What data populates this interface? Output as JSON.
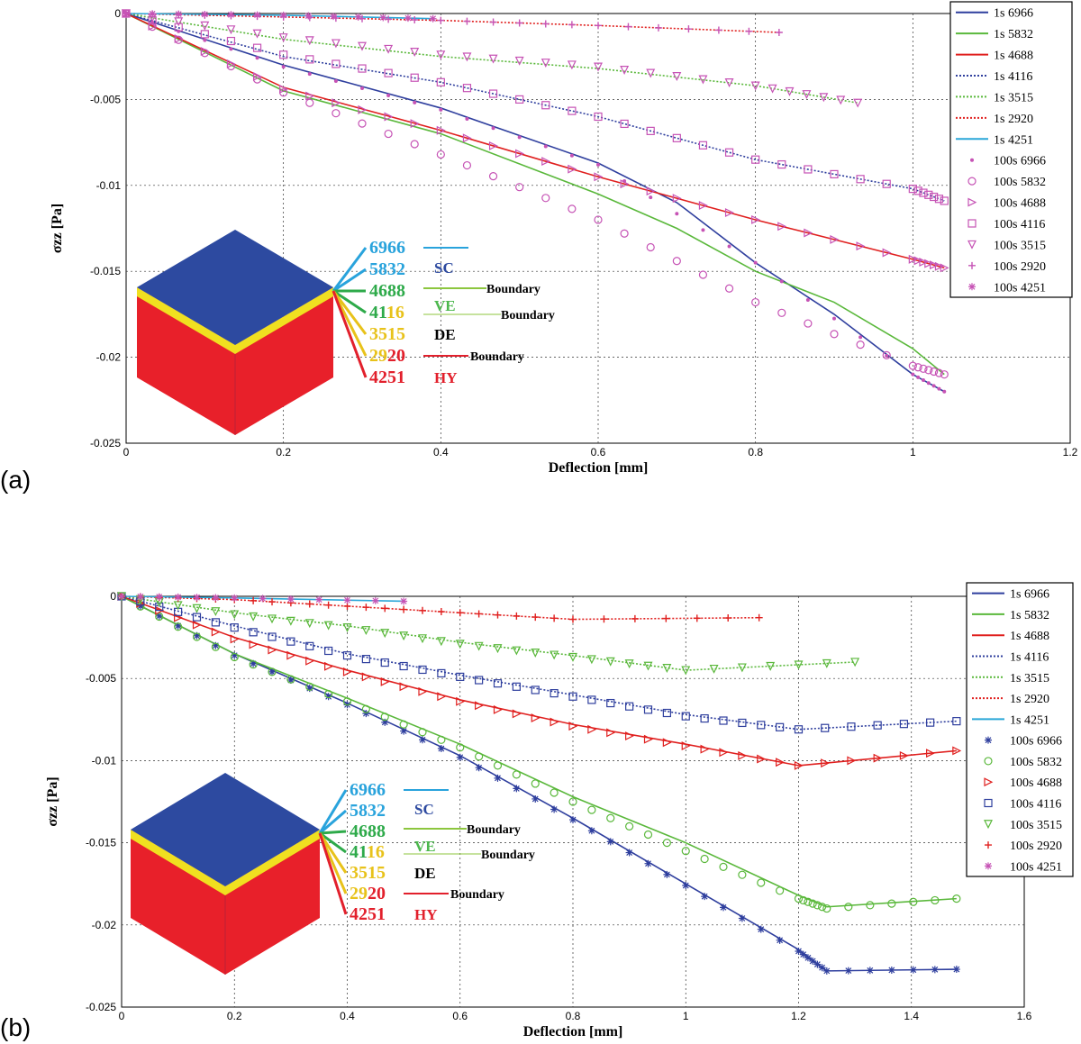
{
  "figure": {
    "panels": [
      {
        "label": "(a)",
        "xlabel": "Deflection [mm]",
        "ylabel": "σzz [Pa]",
        "xticks": [
          "0",
          "0.2",
          "0.4",
          "0.6",
          "0.8",
          "1",
          "1.2"
        ],
        "yticks": [
          "0",
          "-0.005",
          "-0.01",
          "-0.015",
          "-0.02",
          "-0.025"
        ],
        "legend": [
          "1s 6966",
          "1s 5832",
          "1s 4688",
          "1s 4116",
          "1s 3515",
          "1s 2920",
          "1s 4251",
          "100s 6966",
          "100s 5832",
          "100s 4688",
          "100s 4116",
          "100s 3515",
          "100s 2920",
          "100s 4251"
        ]
      },
      {
        "label": "(b)",
        "xlabel": "Deflection [mm]",
        "ylabel": "σzz [Pa]",
        "xticks": [
          "0",
          "0.2",
          "0.4",
          "0.6",
          "0.8",
          "1",
          "1.2",
          "1.4",
          "1.6"
        ],
        "yticks": [
          "0",
          "-0.005",
          "-0.01",
          "-0.015",
          "-0.02",
          "-0.025"
        ],
        "legend": [
          "1s 6966",
          "1s 5832",
          "1s 4688",
          "1s 4116",
          "1s 3515",
          "1s 2920",
          "1s 4251",
          "100s 6966",
          "100s 5832",
          "100s 4688",
          "100s 4116",
          "100s 3515",
          "100s 2920",
          "100s 4251"
        ]
      }
    ],
    "cube_inset": {
      "numbers": [
        {
          "prefix": "6966",
          "suffix": "",
          "color": "#29a3dc"
        },
        {
          "prefix": "5832",
          "suffix": "",
          "color": "#29a3dc"
        },
        {
          "prefix": "4688",
          "suffix": "",
          "color": "#2eaa4a"
        },
        {
          "prefix": "41",
          "suffix": "16",
          "color": "#2eaa4a",
          "color2": "#e8c21a"
        },
        {
          "prefix": "3515",
          "suffix": "",
          "color": "#e8c21a"
        },
        {
          "prefix": "29",
          "suffix": "20",
          "color": "#e8c21a",
          "color2": "#e2202c"
        },
        {
          "prefix": "4251",
          "suffix": "",
          "color": "#e2202c"
        }
      ],
      "classes": [
        {
          "text": "SC",
          "color": "#2d4aa0"
        },
        {
          "text": "VE",
          "color": "#4db84e"
        },
        {
          "text": "DE",
          "color": "#000000"
        },
        {
          "text": "HY",
          "color": "#e2202c"
        }
      ],
      "boundary_label": "Boundary",
      "colors": {
        "top": "#2d4aa0",
        "band": "#f0e020",
        "side": "#e8202a"
      }
    }
  },
  "chart_data": [
    {
      "type": "line",
      "title": "(a)",
      "xlabel": "Deflection [mm]",
      "ylabel": "σzz [Pa]",
      "xlim": [
        0,
        1.2
      ],
      "ylim": [
        -0.025,
        0
      ],
      "grid": true,
      "legend_position": "top-right",
      "series": [
        {
          "name": "1s 6966",
          "color": "#2f3f9e",
          "style": "solid",
          "x": [
            0,
            0.2,
            0.4,
            0.6,
            0.7,
            0.8,
            0.9,
            1.0,
            1.04
          ],
          "y": [
            0,
            -0.003,
            -0.0055,
            -0.0087,
            -0.011,
            -0.0145,
            -0.0175,
            -0.021,
            -0.022
          ]
        },
        {
          "name": "1s 5832",
          "color": "#5ab83b",
          "style": "solid",
          "x": [
            0,
            0.2,
            0.4,
            0.6,
            0.7,
            0.8,
            0.9,
            1.0,
            1.04
          ],
          "y": [
            0,
            -0.0045,
            -0.007,
            -0.0105,
            -0.0125,
            -0.015,
            -0.0168,
            -0.0195,
            -0.021
          ]
        },
        {
          "name": "1s 4688",
          "color": "#e0201f",
          "style": "solid",
          "x": [
            0,
            0.2,
            0.4,
            0.6,
            0.8,
            1.0,
            1.04
          ],
          "y": [
            0,
            -0.0043,
            -0.0068,
            -0.0095,
            -0.012,
            -0.0143,
            -0.0148
          ]
        },
        {
          "name": "1s 4116",
          "color": "#2f3f9e",
          "style": "dotted",
          "x": [
            0,
            0.2,
            0.4,
            0.6,
            0.8,
            1.0,
            1.04
          ],
          "y": [
            0,
            -0.0025,
            -0.004,
            -0.006,
            -0.0085,
            -0.0102,
            -0.0109
          ]
        },
        {
          "name": "1s 3515",
          "color": "#5ab83b",
          "style": "dotted",
          "x": [
            0,
            0.2,
            0.4,
            0.6,
            0.8,
            0.93
          ],
          "y": [
            0,
            -0.0015,
            -0.0025,
            -0.0032,
            -0.0042,
            -0.0052
          ]
        },
        {
          "name": "1s 2920",
          "color": "#e0201f",
          "style": "dotted",
          "x": [
            0,
            0.2,
            0.4,
            0.6,
            0.83
          ],
          "y": [
            0,
            -0.0002,
            -0.0004,
            -0.0007,
            -0.0011
          ]
        },
        {
          "name": "1s 4251",
          "color": "#2aa7d8",
          "style": "solid",
          "x": [
            0,
            0.2,
            0.39
          ],
          "y": [
            0,
            -0.0001,
            -0.0003
          ]
        },
        {
          "name": "100s 6966",
          "color": "#c653b5",
          "marker": "dot",
          "x": [
            0,
            0.2,
            0.4,
            0.6,
            0.8,
            1.0,
            1.04
          ],
          "y": [
            0,
            -0.0031,
            -0.0056,
            -0.0088,
            -0.0145,
            -0.021,
            -0.022
          ]
        },
        {
          "name": "100s 5832",
          "color": "#c653b5",
          "marker": "circle",
          "x": [
            0,
            0.2,
            0.4,
            0.6,
            0.8,
            1.0,
            1.04
          ],
          "y": [
            0,
            -0.0046,
            -0.0082,
            -0.012,
            -0.0168,
            -0.0205,
            -0.021
          ]
        },
        {
          "name": "100s 4688",
          "color": "#c653b5",
          "marker": "triangle-right",
          "x": [
            0,
            0.2,
            0.4,
            0.6,
            0.8,
            1.0,
            1.04
          ],
          "y": [
            0,
            -0.0044,
            -0.0068,
            -0.0095,
            -0.012,
            -0.0143,
            -0.0148
          ]
        },
        {
          "name": "100s 4116",
          "color": "#c653b5",
          "marker": "square",
          "x": [
            0,
            0.2,
            0.4,
            0.6,
            0.8,
            1.0,
            1.04
          ],
          "y": [
            0,
            -0.0024,
            -0.004,
            -0.006,
            -0.0085,
            -0.0102,
            -0.0109
          ]
        },
        {
          "name": "100s 3515",
          "color": "#c653b5",
          "marker": "triangle-down",
          "x": [
            0,
            0.2,
            0.4,
            0.6,
            0.8,
            0.93
          ],
          "y": [
            0,
            -0.0014,
            -0.0024,
            -0.0031,
            -0.0042,
            -0.0052
          ]
        },
        {
          "name": "100s 2920",
          "color": "#c653b5",
          "marker": "plus",
          "x": [
            0,
            0.2,
            0.4,
            0.6,
            0.83
          ],
          "y": [
            0,
            -0.0002,
            -0.0004,
            -0.0007,
            -0.0011
          ]
        },
        {
          "name": "100s 4251",
          "color": "#c653b5",
          "marker": "star",
          "x": [
            0,
            0.2,
            0.39
          ],
          "y": [
            0,
            -0.0001,
            -0.0003
          ]
        }
      ]
    },
    {
      "type": "line",
      "title": "(b)",
      "xlabel": "Deflection [mm]",
      "ylabel": "σzz [Pa]",
      "xlim": [
        0,
        1.6
      ],
      "ylim": [
        -0.025,
        0
      ],
      "grid": true,
      "legend_position": "top-right",
      "series": [
        {
          "name": "1s 6966",
          "color": "#2f3f9e",
          "style": "solid",
          "x": [
            0,
            0.2,
            0.4,
            0.6,
            0.8,
            1.0,
            1.2,
            1.25,
            1.48
          ],
          "y": [
            0,
            -0.0035,
            -0.0065,
            -0.0097,
            -0.0135,
            -0.0175,
            -0.0215,
            -0.0228,
            -0.0227
          ]
        },
        {
          "name": "1s 5832",
          "color": "#5ab83b",
          "style": "solid",
          "x": [
            0,
            0.2,
            0.4,
            0.6,
            0.8,
            1.0,
            1.2,
            1.25,
            1.48
          ],
          "y": [
            0,
            -0.0035,
            -0.0062,
            -0.009,
            -0.0122,
            -0.015,
            -0.0182,
            -0.0189,
            -0.0184
          ]
        },
        {
          "name": "1s 4688",
          "color": "#e0201f",
          "style": "solid",
          "x": [
            0,
            0.2,
            0.4,
            0.6,
            0.8,
            1.0,
            1.2,
            1.48
          ],
          "y": [
            0,
            -0.0025,
            -0.0045,
            -0.0063,
            -0.0078,
            -0.009,
            -0.0103,
            -0.0094
          ]
        },
        {
          "name": "1s 4116",
          "color": "#2f3f9e",
          "style": "dotted",
          "x": [
            0,
            0.2,
            0.4,
            0.6,
            0.8,
            1.0,
            1.2,
            1.48
          ],
          "y": [
            0,
            -0.0018,
            -0.0035,
            -0.0048,
            -0.006,
            -0.0072,
            -0.0081,
            -0.0076
          ]
        },
        {
          "name": "1s 3515",
          "color": "#5ab83b",
          "style": "dotted",
          "x": [
            0,
            0.2,
            0.4,
            0.6,
            0.8,
            1.0,
            1.3
          ],
          "y": [
            0,
            -0.001,
            -0.0018,
            -0.0028,
            -0.0036,
            -0.0045,
            -0.004
          ]
        },
        {
          "name": "1s 2920",
          "color": "#e0201f",
          "style": "dotted",
          "x": [
            0,
            0.2,
            0.4,
            0.6,
            0.8,
            1.13
          ],
          "y": [
            0,
            -0.0002,
            -0.0006,
            -0.001,
            -0.0014,
            -0.0013
          ]
        },
        {
          "name": "1s 4251",
          "color": "#2aa7d8",
          "style": "solid",
          "x": [
            0,
            0.2,
            0.5
          ],
          "y": [
            0,
            -0.0001,
            -0.0003
          ]
        },
        {
          "name": "100s 6966",
          "color": "#2f3f9e",
          "marker": "star",
          "x": [
            0,
            0.2,
            0.4,
            0.6,
            0.8,
            1.0,
            1.2,
            1.25,
            1.48
          ],
          "y": [
            0,
            -0.0036,
            -0.0066,
            -0.0098,
            -0.0136,
            -0.0176,
            -0.0216,
            -0.0228,
            -0.0227
          ]
        },
        {
          "name": "100s 5832",
          "color": "#5ab83b",
          "marker": "circle",
          "x": [
            0,
            0.2,
            0.4,
            0.6,
            0.8,
            1.0,
            1.2,
            1.25,
            1.48
          ],
          "y": [
            0,
            -0.0037,
            -0.0064,
            -0.0092,
            -0.0125,
            -0.0155,
            -0.0184,
            -0.019,
            -0.0184
          ]
        },
        {
          "name": "100s 4688",
          "color": "#e0201f",
          "marker": "triangle-right",
          "x": [
            0,
            0.2,
            0.4,
            0.6,
            0.8,
            1.0,
            1.2,
            1.48
          ],
          "y": [
            0,
            -0.0026,
            -0.0046,
            -0.0064,
            -0.0079,
            -0.0091,
            -0.0103,
            -0.0094
          ]
        },
        {
          "name": "100s 4116",
          "color": "#2f3f9e",
          "marker": "square",
          "x": [
            0,
            0.2,
            0.4,
            0.6,
            0.8,
            1.0,
            1.2,
            1.48
          ],
          "y": [
            0,
            -0.0019,
            -0.0036,
            -0.0049,
            -0.0061,
            -0.0073,
            -0.0081,
            -0.0076
          ]
        },
        {
          "name": "100s 3515",
          "color": "#5ab83b",
          "marker": "triangle-down",
          "x": [
            0,
            0.2,
            0.4,
            0.6,
            0.8,
            1.0,
            1.3
          ],
          "y": [
            0,
            -0.0011,
            -0.0019,
            -0.0029,
            -0.0037,
            -0.0045,
            -0.004
          ]
        },
        {
          "name": "100s 2920",
          "color": "#e0201f",
          "marker": "plus",
          "x": [
            0,
            0.2,
            0.4,
            0.6,
            0.8,
            1.13
          ],
          "y": [
            0,
            -0.0002,
            -0.0006,
            -0.001,
            -0.0014,
            -0.0013
          ]
        },
        {
          "name": "100s 4251",
          "color": "#c653b5",
          "marker": "star",
          "x": [
            0,
            0.2,
            0.5
          ],
          "y": [
            0,
            -0.0001,
            -0.0003
          ]
        }
      ]
    }
  ]
}
